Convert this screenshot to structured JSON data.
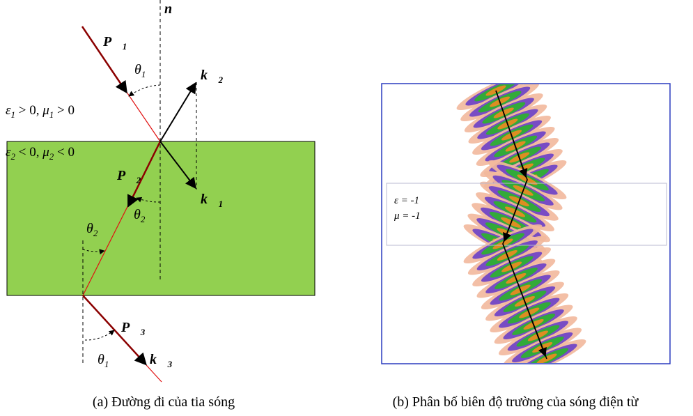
{
  "panel_a": {
    "normal": "n⃗",
    "p1": {
      "base": "P⃗",
      "sub": "1"
    },
    "theta1_top": {
      "base": "θ",
      "sub": "1"
    },
    "k2": {
      "base": "k⃗",
      "sub": "2"
    },
    "medium1": {
      "eps": "ε",
      "eps_sub": "1",
      "eps_rel": " > 0, ",
      "mu": "μ",
      "mu_sub": "1",
      "mu_rel": " > 0"
    },
    "medium2": {
      "eps": "ε",
      "eps_sub": "2",
      "eps_rel": " < 0, ",
      "mu": "μ",
      "mu_sub": "2",
      "mu_rel": " < 0"
    },
    "p2": {
      "base": "P⃗",
      "sub": "2"
    },
    "k1": {
      "base": "k⃗",
      "sub": "1"
    },
    "theta2_inner": {
      "base": "θ",
      "sub": "2"
    },
    "theta2_left": {
      "base": "θ",
      "sub": "2"
    },
    "p3": {
      "base": "P⃗",
      "sub": "3"
    },
    "k3": {
      "base": "k⃗",
      "sub": "3"
    },
    "theta1_bottom": {
      "base": "θ",
      "sub": "1"
    },
    "caption": "(a) Đường đi của tia sóng"
  },
  "panel_b": {
    "epsilon": "ε = -1",
    "mu": "μ = -1",
    "caption": "(b) Phân bố biên độ trường của sóng điện từ"
  }
}
